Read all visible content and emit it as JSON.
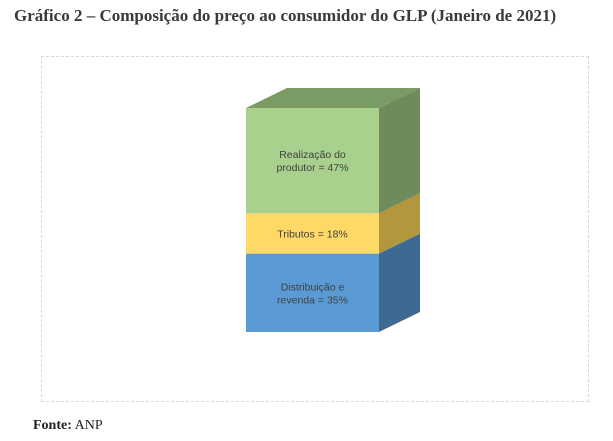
{
  "title": "Gráfico 2 – Composição do preço ao consumidor do GLP (Janeiro de 2021)",
  "source": {
    "label": "Fonte:",
    "value": "ANP"
  },
  "chart_data": {
    "type": "bar",
    "subtype": "stacked-3d-column",
    "categories": [
      ""
    ],
    "ylim": [
      0,
      100
    ],
    "grid": false,
    "legend": "none",
    "series": [
      {
        "name": "Distribuição e revenda",
        "values": [
          35
        ],
        "label_lines": [
          "Distribuição e",
          "revenda = 35%"
        ],
        "color": "#5b9bd5",
        "side_color": "#3e6a92"
      },
      {
        "name": "Tributos",
        "values": [
          18
        ],
        "label_lines": [
          "Tributos = 18%"
        ],
        "color": "#ffd966",
        "side_color": "#b2973f"
      },
      {
        "name": "Realização do produtor",
        "values": [
          47
        ],
        "label_lines": [
          "Realização do",
          "produtor = 47%"
        ],
        "color": "#a9d18e",
        "side_color": "#6f8a5b"
      }
    ]
  }
}
